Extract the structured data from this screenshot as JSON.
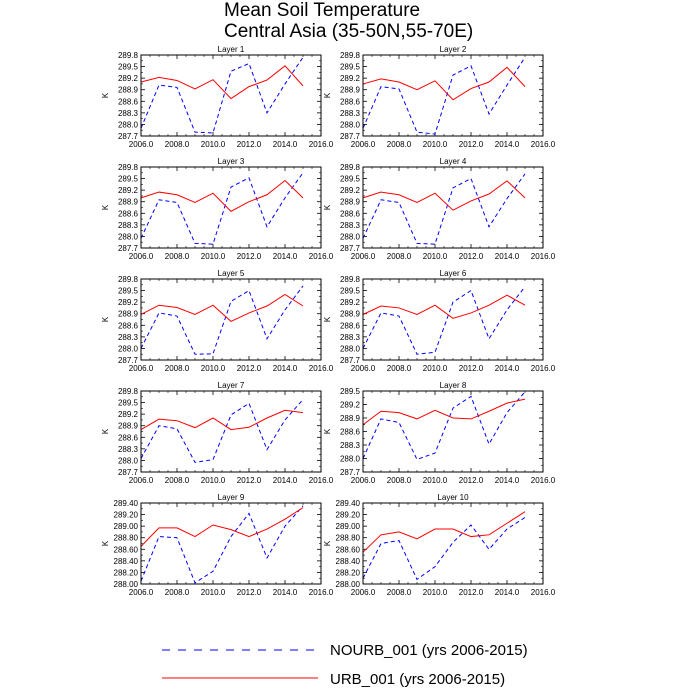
{
  "title": {
    "line1": "Mean Soil Temperature",
    "line2": "Central Asia (35-50N,55-70E)"
  },
  "legend": {
    "nourb_label": "NOURB_001 (yrs 2006-2015)",
    "urb_label": "URB_001 (yrs 2006-2015)"
  },
  "colors": {
    "nourb": "#0000ff",
    "urb": "#ff0000"
  },
  "chart_data": [
    {
      "type": "line",
      "title": "Layer 1",
      "ylabel": "K",
      "xlim": [
        2006.0,
        2016.0
      ],
      "ylim": [
        287.7,
        289.8
      ],
      "xticks": [
        "2006.0",
        "2008.0",
        "2010.0",
        "2012.0",
        "2014.0",
        "2016.0"
      ],
      "yticks": [
        "287.7",
        "288.0",
        "288.3",
        "288.6",
        "288.9",
        "289.2",
        "289.5",
        "289.8"
      ],
      "x": [
        2006,
        2007,
        2008,
        2009,
        2010,
        2011,
        2012,
        2013,
        2014,
        2015
      ],
      "series": [
        {
          "name": "NOURB_001",
          "style": "dashed",
          "values": [
            287.9,
            289.02,
            288.96,
            287.8,
            287.78,
            289.38,
            289.58,
            288.3,
            289.05,
            289.74
          ]
        },
        {
          "name": "URB_001",
          "style": "solid",
          "values": [
            289.1,
            289.22,
            289.14,
            288.92,
            289.16,
            288.67,
            288.98,
            289.15,
            289.52,
            289.0
          ]
        }
      ]
    },
    {
      "type": "line",
      "title": "Layer 2",
      "ylabel": "K",
      "xlim": [
        2006.0,
        2016.0
      ],
      "ylim": [
        287.7,
        289.8
      ],
      "xticks": [
        "2006.0",
        "2008.0",
        "2010.0",
        "2012.0",
        "2014.0",
        "2016.0"
      ],
      "yticks": [
        "287.7",
        "288.0",
        "288.3",
        "288.6",
        "288.9",
        "289.2",
        "289.5",
        "289.8"
      ],
      "x": [
        2006,
        2007,
        2008,
        2009,
        2010,
        2011,
        2012,
        2013,
        2014,
        2015
      ],
      "series": [
        {
          "name": "NOURB_001",
          "style": "dashed",
          "values": [
            287.9,
            288.98,
            288.92,
            287.8,
            287.75,
            289.28,
            289.52,
            288.27,
            289.02,
            289.74
          ]
        },
        {
          "name": "URB_001",
          "style": "solid",
          "values": [
            289.05,
            289.18,
            289.1,
            288.9,
            289.13,
            288.64,
            288.93,
            289.1,
            289.48,
            288.98
          ]
        }
      ]
    },
    {
      "type": "line",
      "title": "Layer 3",
      "ylabel": "K",
      "xlim": [
        2006.0,
        2016.0
      ],
      "ylim": [
        287.7,
        289.8
      ],
      "xticks": [
        "2006.0",
        "2008.0",
        "2010.0",
        "2012.0",
        "2014.0",
        "2016.0"
      ],
      "yticks": [
        "287.7",
        "288.0",
        "288.3",
        "288.6",
        "288.9",
        "289.2",
        "289.5",
        "289.8"
      ],
      "x": [
        2006,
        2007,
        2008,
        2009,
        2010,
        2011,
        2012,
        2013,
        2014,
        2015
      ],
      "series": [
        {
          "name": "NOURB_001",
          "style": "dashed",
          "values": [
            287.95,
            288.95,
            288.88,
            287.82,
            287.8,
            289.28,
            289.52,
            288.25,
            289.0,
            289.65
          ]
        },
        {
          "name": "URB_001",
          "style": "solid",
          "values": [
            289.0,
            289.15,
            289.08,
            288.88,
            289.12,
            288.65,
            288.9,
            289.08,
            289.45,
            289.0
          ]
        }
      ]
    },
    {
      "type": "line",
      "title": "Layer 4",
      "ylabel": "K",
      "xlim": [
        2006.0,
        2016.0
      ],
      "ylim": [
        287.7,
        289.8
      ],
      "xticks": [
        "2006.0",
        "2008.0",
        "2010.0",
        "2012.0",
        "2014.0",
        "2016.0"
      ],
      "yticks": [
        "287.7",
        "288.0",
        "288.3",
        "288.6",
        "288.9",
        "289.2",
        "289.5",
        "289.8"
      ],
      "x": [
        2006,
        2007,
        2008,
        2009,
        2010,
        2011,
        2012,
        2013,
        2014,
        2015
      ],
      "series": [
        {
          "name": "NOURB_001",
          "style": "dashed",
          "values": [
            287.95,
            288.95,
            288.88,
            287.82,
            287.8,
            289.26,
            289.5,
            288.25,
            288.98,
            289.62
          ]
        },
        {
          "name": "URB_001",
          "style": "solid",
          "values": [
            289.0,
            289.15,
            289.08,
            288.88,
            289.12,
            288.68,
            288.92,
            289.1,
            289.44,
            289.0
          ]
        }
      ]
    },
    {
      "type": "line",
      "title": "Layer 5",
      "ylabel": "K",
      "xlim": [
        2006.0,
        2016.0
      ],
      "ylim": [
        287.7,
        289.8
      ],
      "xticks": [
        "2006.0",
        "2008.0",
        "2010.0",
        "2012.0",
        "2014.0",
        "2016.0"
      ],
      "yticks": [
        "287.7",
        "288.0",
        "288.3",
        "288.6",
        "288.9",
        "289.2",
        "289.5",
        "289.8"
      ],
      "x": [
        2006,
        2007,
        2008,
        2009,
        2010,
        2011,
        2012,
        2013,
        2014,
        2015
      ],
      "series": [
        {
          "name": "NOURB_001",
          "style": "dashed",
          "values": [
            288.0,
            288.92,
            288.84,
            287.85,
            287.86,
            289.22,
            289.5,
            288.25,
            289.0,
            289.62
          ]
        },
        {
          "name": "URB_001",
          "style": "solid",
          "values": [
            288.88,
            289.12,
            289.06,
            288.88,
            289.12,
            288.7,
            288.92,
            289.1,
            289.4,
            289.1
          ]
        }
      ]
    },
    {
      "type": "line",
      "title": "Layer 6",
      "ylabel": "K",
      "xlim": [
        2006.0,
        2016.0
      ],
      "ylim": [
        287.7,
        289.8
      ],
      "xticks": [
        "2006.0",
        "2008.0",
        "2010.0",
        "2012.0",
        "2014.0",
        "2016.0"
      ],
      "yticks": [
        "287.7",
        "288.0",
        "288.3",
        "288.6",
        "288.9",
        "289.2",
        "289.5",
        "289.8"
      ],
      "x": [
        2006,
        2007,
        2008,
        2009,
        2010,
        2011,
        2012,
        2013,
        2014,
        2015
      ],
      "series": [
        {
          "name": "NOURB_001",
          "style": "dashed",
          "values": [
            288.0,
            288.92,
            288.84,
            287.85,
            287.9,
            289.2,
            289.5,
            288.25,
            289.0,
            289.6
          ]
        },
        {
          "name": "URB_001",
          "style": "solid",
          "values": [
            288.88,
            289.1,
            289.05,
            288.88,
            289.12,
            288.78,
            288.92,
            289.12,
            289.38,
            289.12
          ]
        }
      ]
    },
    {
      "type": "line",
      "title": "Layer 7",
      "ylabel": "K",
      "xlim": [
        2006.0,
        2016.0
      ],
      "ylim": [
        287.7,
        289.8
      ],
      "xticks": [
        "2006.0",
        "2008.0",
        "2010.0",
        "2012.0",
        "2014.0",
        "2016.0"
      ],
      "yticks": [
        "287.7",
        "288.0",
        "288.3",
        "288.6",
        "288.9",
        "289.2",
        "289.5",
        "289.8"
      ],
      "x": [
        2006,
        2007,
        2008,
        2009,
        2010,
        2011,
        2012,
        2013,
        2014,
        2015
      ],
      "series": [
        {
          "name": "NOURB_001",
          "style": "dashed",
          "values": [
            288.05,
            288.9,
            288.82,
            287.95,
            288.02,
            289.18,
            289.48,
            288.28,
            289.05,
            289.58
          ]
        },
        {
          "name": "URB_001",
          "style": "solid",
          "values": [
            288.8,
            289.07,
            289.03,
            288.85,
            289.1,
            288.8,
            288.86,
            289.1,
            289.3,
            289.24
          ]
        }
      ]
    },
    {
      "type": "line",
      "title": "Layer 8",
      "ylabel": "K",
      "xlim": [
        2006.0,
        2016.0
      ],
      "ylim": [
        287.7,
        289.5
      ],
      "xticks": [
        "2006.0",
        "2008.0",
        "2010.0",
        "2012.0",
        "2014.0",
        "2016.0"
      ],
      "yticks": [
        "287.7",
        "288.0",
        "288.3",
        "288.6",
        "288.9",
        "289.2",
        "289.5"
      ],
      "x": [
        2006,
        2007,
        2008,
        2009,
        2010,
        2011,
        2012,
        2013,
        2014,
        2015
      ],
      "series": [
        {
          "name": "NOURB_001",
          "style": "dashed",
          "values": [
            288.0,
            288.88,
            288.8,
            287.98,
            288.12,
            289.12,
            289.38,
            288.32,
            289.02,
            289.48
          ]
        },
        {
          "name": "URB_001",
          "style": "solid",
          "values": [
            288.75,
            289.05,
            289.02,
            288.88,
            289.07,
            288.9,
            288.88,
            289.05,
            289.23,
            289.32
          ]
        }
      ]
    },
    {
      "type": "line",
      "title": "Layer 9",
      "ylabel": "K",
      "xlim": [
        2006.0,
        2016.0
      ],
      "ylim": [
        288.0,
        289.4
      ],
      "xticks": [
        "2006.0",
        "2008.0",
        "2010.0",
        "2012.0",
        "2014.0",
        "2016.0"
      ],
      "yticks": [
        "288.00",
        "288.20",
        "288.40",
        "288.60",
        "288.80",
        "289.00",
        "289.20",
        "289.40"
      ],
      "x": [
        2006,
        2007,
        2008,
        2009,
        2010,
        2011,
        2012,
        2013,
        2014,
        2015
      ],
      "series": [
        {
          "name": "NOURB_001",
          "style": "dashed",
          "values": [
            288.05,
            288.82,
            288.8,
            288.02,
            288.22,
            288.82,
            289.22,
            288.45,
            289.0,
            289.35
          ]
        },
        {
          "name": "URB_001",
          "style": "solid",
          "values": [
            288.65,
            288.97,
            288.97,
            288.82,
            289.02,
            288.94,
            288.82,
            288.95,
            289.12,
            289.32
          ]
        }
      ]
    },
    {
      "type": "line",
      "title": "Layer 10",
      "ylabel": "K",
      "xlim": [
        2006.0,
        2016.0
      ],
      "ylim": [
        288.0,
        289.4
      ],
      "xticks": [
        "2006.0",
        "2008.0",
        "2010.0",
        "2012.0",
        "2014.0",
        "2016.0"
      ],
      "yticks": [
        "288.00",
        "288.20",
        "288.40",
        "288.60",
        "288.80",
        "289.00",
        "289.20",
        "289.40"
      ],
      "x": [
        2006,
        2007,
        2008,
        2009,
        2010,
        2011,
        2012,
        2013,
        2014,
        2015
      ],
      "series": [
        {
          "name": "NOURB_001",
          "style": "dashed",
          "values": [
            288.1,
            288.7,
            288.75,
            288.08,
            288.3,
            288.72,
            289.02,
            288.6,
            288.95,
            289.15
          ]
        },
        {
          "name": "URB_001",
          "style": "solid",
          "values": [
            288.55,
            288.85,
            288.9,
            288.78,
            288.95,
            288.95,
            288.82,
            288.85,
            289.05,
            289.25
          ]
        }
      ]
    }
  ]
}
